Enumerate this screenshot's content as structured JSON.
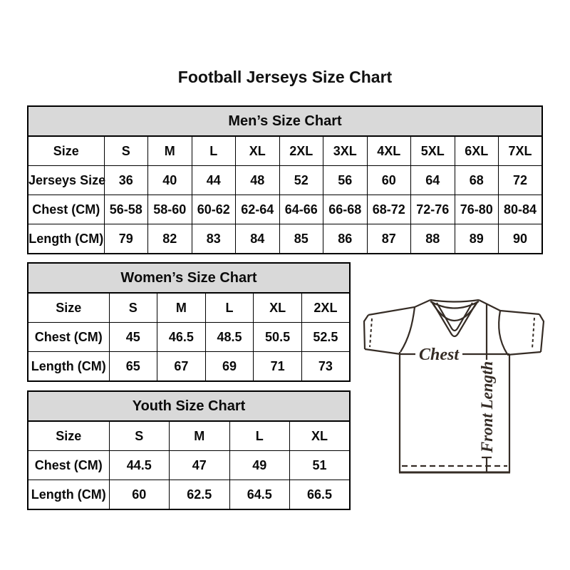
{
  "title": "Football Jerseys Size Chart",
  "chart_data": [
    {
      "type": "table",
      "title": "Men’s Size Chart",
      "rows": [
        [
          "Size",
          "S",
          "M",
          "L",
          "XL",
          "2XL",
          "3XL",
          "4XL",
          "5XL",
          "6XL",
          "7XL"
        ],
        [
          "Jerseys Size",
          "36",
          "40",
          "44",
          "48",
          "52",
          "56",
          "60",
          "64",
          "68",
          "72"
        ],
        [
          "Chest (CM)",
          "56-58",
          "58-60",
          "60-62",
          "62-64",
          "64-66",
          "66-68",
          "68-72",
          "72-76",
          "76-80",
          "80-84"
        ],
        [
          "Length (CM)",
          "79",
          "82",
          "83",
          "84",
          "85",
          "86",
          "87",
          "88",
          "89",
          "90"
        ]
      ]
    },
    {
      "type": "table",
      "title": "Women’s Size Chart",
      "rows": [
        [
          "Size",
          "S",
          "M",
          "L",
          "XL",
          "2XL"
        ],
        [
          "Chest (CM)",
          "45",
          "46.5",
          "48.5",
          "50.5",
          "52.5"
        ],
        [
          "Length (CM)",
          "65",
          "67",
          "69",
          "71",
          "73"
        ]
      ]
    },
    {
      "type": "table",
      "title": "Youth Size Chart",
      "rows": [
        [
          "Size",
          "S",
          "M",
          "L",
          "XL"
        ],
        [
          "Chest (CM)",
          "44.5",
          "47",
          "49",
          "51"
        ],
        [
          "Length (CM)",
          "60",
          "62.5",
          "64.5",
          "66.5"
        ]
      ]
    }
  ],
  "diagram": {
    "chest_label": "Chest",
    "front_length_label": "Front Length"
  },
  "colors": {
    "header_bg": "#d9d9d9",
    "border": "#000000",
    "text": "#0b0b0b",
    "diagram_stroke": "#352c25"
  }
}
